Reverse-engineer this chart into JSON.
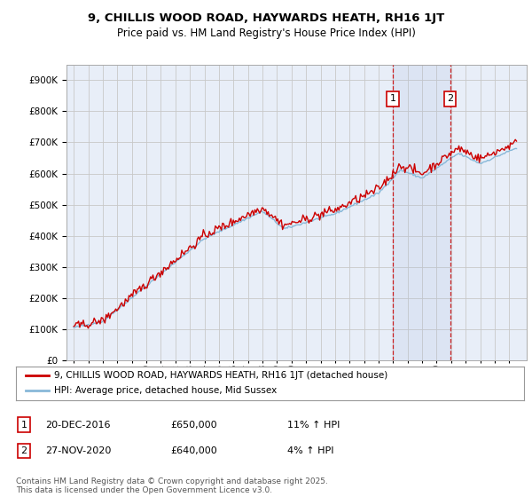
{
  "title": "9, CHILLIS WOOD ROAD, HAYWARDS HEATH, RH16 1JT",
  "subtitle": "Price paid vs. HM Land Registry's House Price Index (HPI)",
  "legend_label_red": "9, CHILLIS WOOD ROAD, HAYWARDS HEATH, RH16 1JT (detached house)",
  "legend_label_blue": "HPI: Average price, detached house, Mid Sussex",
  "annotation1_label": "1",
  "annotation1_date": "20-DEC-2016",
  "annotation1_price": "£650,000",
  "annotation1_hpi": "11% ↑ HPI",
  "annotation2_label": "2",
  "annotation2_date": "27-NOV-2020",
  "annotation2_price": "£640,000",
  "annotation2_hpi": "4% ↑ HPI",
  "footer": "Contains HM Land Registry data © Crown copyright and database right 2025.\nThis data is licensed under the Open Government Licence v3.0.",
  "background_color": "#ffffff",
  "plot_bg_color": "#e8eef8",
  "grid_color": "#c8c8c8",
  "red_color": "#cc0000",
  "blue_color": "#88b8d8",
  "marker1_x": 2016.97,
  "marker2_x": 2020.92,
  "ylim_min": 0,
  "ylim_max": 950000,
  "xlim_min": 1994.5,
  "xlim_max": 2026.2,
  "ytick_step": 100000,
  "title_fontsize": 9.5,
  "subtitle_fontsize": 8.5,
  "tick_fontsize": 7.5,
  "legend_fontsize": 7.5,
  "ann_fontsize": 8.0,
  "footer_fontsize": 6.5
}
